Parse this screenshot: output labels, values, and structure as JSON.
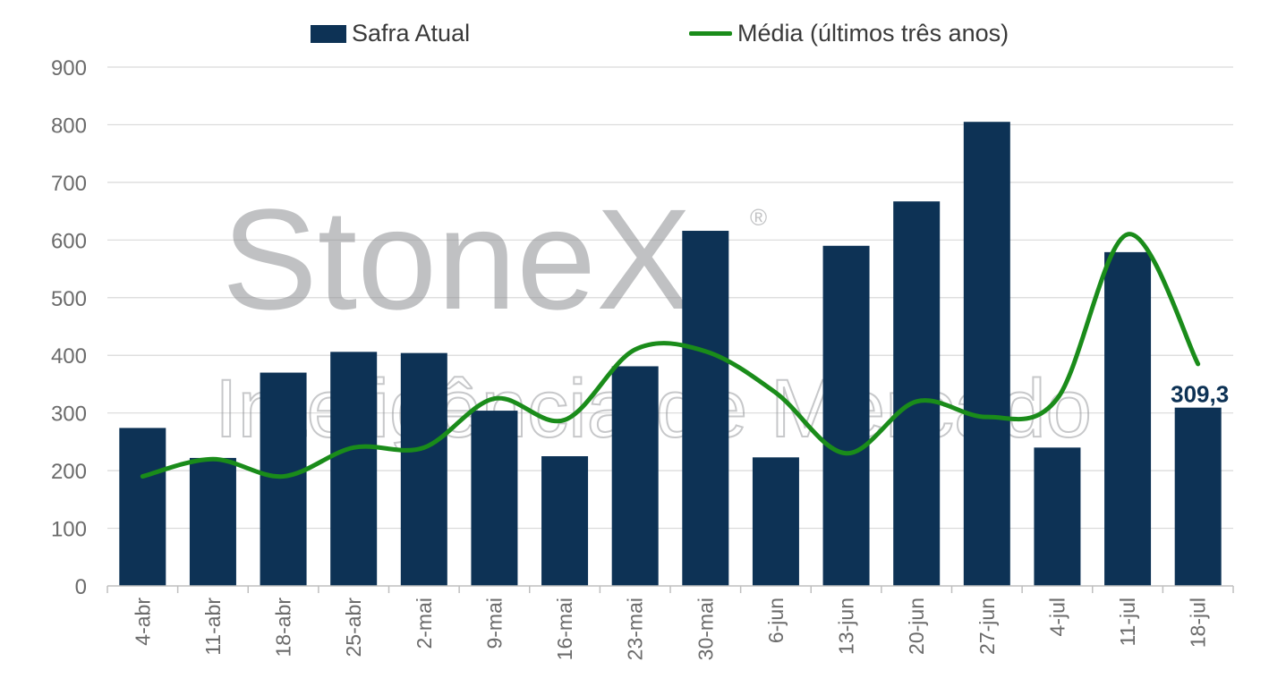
{
  "chart_data": {
    "type": "bar",
    "categories": [
      "4-abr",
      "11-abr",
      "18-abr",
      "25-abr",
      "2-mai",
      "9-mai",
      "16-mai",
      "23-mai",
      "30-mai",
      "6-jun",
      "13-jun",
      "20-jun",
      "27-jun",
      "4-jul",
      "11-jul",
      "18-jul"
    ],
    "series": [
      {
        "name": "Safra Atual",
        "kind": "bar",
        "color": "#0d3255",
        "values": [
          274,
          222,
          370,
          406,
          404,
          304,
          225,
          381,
          616,
          223,
          590,
          667,
          805,
          240,
          579,
          309.3
        ]
      },
      {
        "name": "Média (últimos três anos)",
        "kind": "line",
        "color": "#1a8c1a",
        "values": [
          190,
          220,
          190,
          240,
          240,
          325,
          288,
          410,
          407,
          335,
          230,
          320,
          293,
          325,
          610,
          385
        ]
      }
    ],
    "data_label": {
      "series": "Safra Atual",
      "category": "18-jul",
      "text": "309,3"
    },
    "ylim": [
      0,
      900
    ],
    "yticks": [
      0,
      100,
      200,
      300,
      400,
      500,
      600,
      700,
      800,
      900
    ],
    "grid": true,
    "legend": "top-center",
    "xlabel": "",
    "ylabel": "",
    "title": "",
    "watermark": {
      "logo": "StoneX",
      "registered": "®",
      "tagline": "Inteligência de Mercado"
    }
  }
}
